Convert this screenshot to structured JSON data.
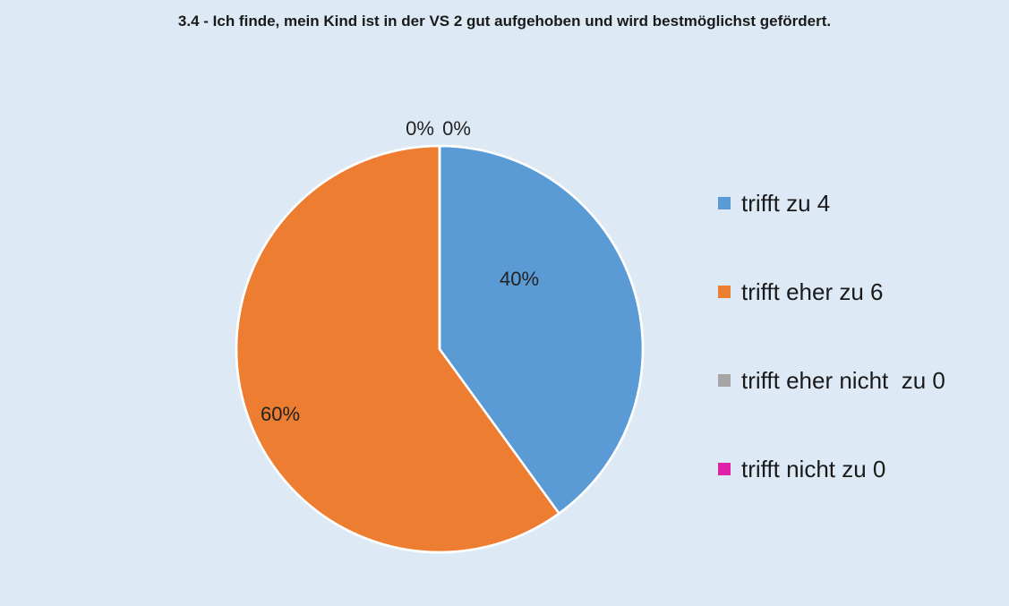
{
  "chart_data": {
    "type": "pie",
    "title": "3.4 - Ich finde, mein Kind ist in der VS 2 gut aufgehoben und wird bestmöglichst gefördert.",
    "categories": [
      "trifft zu 4",
      "trifft eher zu 6",
      "trifft eher nicht  zu 0",
      "trifft nicht zu 0"
    ],
    "values": [
      4,
      6,
      0,
      0
    ],
    "data_labels": [
      "40%",
      "60%",
      "0%",
      "0%"
    ],
    "colors": [
      "#5b9bd5",
      "#ed7d31",
      "#a5a5a5",
      "#e020a8"
    ],
    "legend_position": "right"
  }
}
